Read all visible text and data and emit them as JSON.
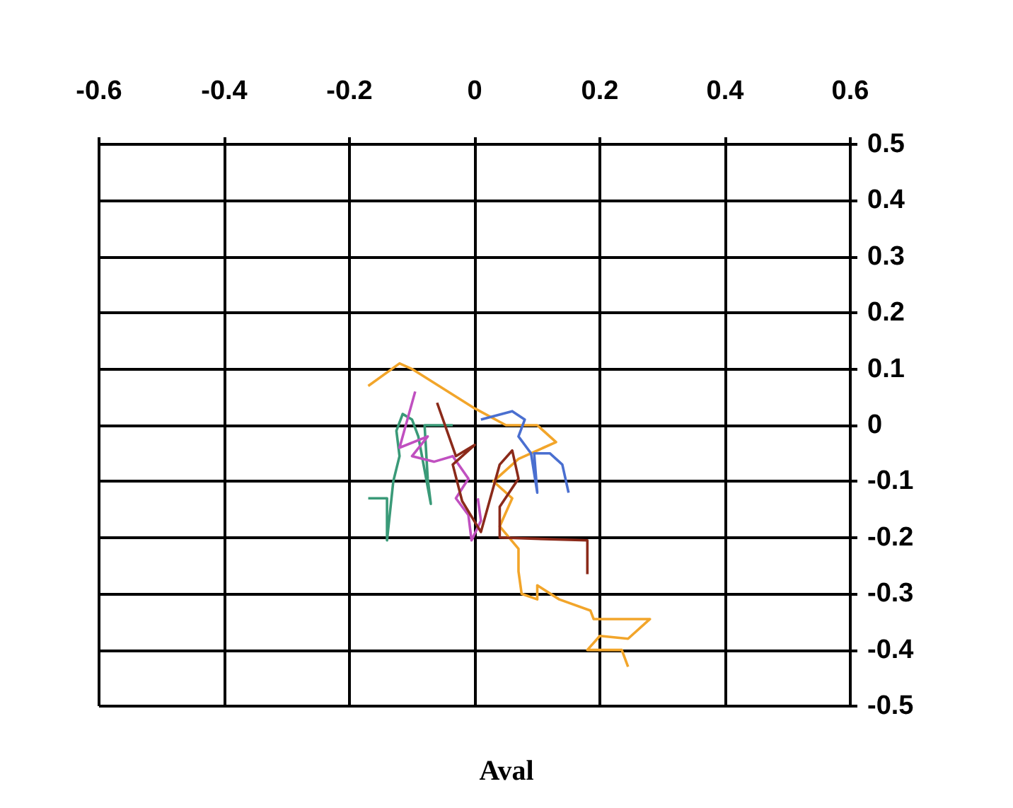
{
  "chart_data": {
    "type": "line",
    "xlabel": "Aval",
    "xlim": [
      -0.6,
      0.6
    ],
    "xticks": [
      -0.6,
      -0.4,
      -0.2,
      0,
      0.2,
      0.4,
      0.6
    ],
    "ylim": [
      -0.5,
      0.5
    ],
    "yticks": [
      -0.5,
      -0.4,
      -0.3,
      -0.2,
      -0.1,
      0,
      0.1,
      0.2,
      0.3,
      0.4,
      0.5
    ],
    "grid": true,
    "marker": "none",
    "line_style": "solid",
    "series": [
      {
        "color": "#f2a52a",
        "x": [
          -0.17,
          -0.12,
          -0.1,
          0,
          0.05,
          0.1,
          0.13,
          0.11,
          0.07,
          0.03,
          0.06,
          0.04,
          0.07,
          0.07,
          0.075,
          0.1,
          0.1,
          0.135,
          0.185,
          0.19,
          0.28,
          0.245,
          0.2,
          0.18,
          0.235,
          0.245
        ],
        "values": [
          0.07,
          0.11,
          0.1,
          0.03,
          0,
          0,
          -0.03,
          -0.04,
          -0.06,
          -0.1,
          -0.13,
          -0.18,
          -0.22,
          -0.26,
          -0.3,
          -0.31,
          -0.285,
          -0.31,
          -0.33,
          -0.345,
          -0.345,
          -0.38,
          -0.375,
          -0.4,
          -0.4,
          -0.43
        ]
      },
      {
        "color": "#4a6fd0",
        "x": [
          0.01,
          0.06,
          0.08,
          0.07,
          0.09,
          0.1,
          0.095,
          0.12,
          0.14,
          0.15
        ],
        "values": [
          0.01,
          0.025,
          0.01,
          -0.02,
          -0.05,
          -0.12,
          -0.05,
          -0.05,
          -0.07,
          -0.12
        ]
      },
      {
        "color": "#3a9a78",
        "x": [
          -0.17,
          -0.14,
          -0.14,
          -0.13,
          -0.12,
          -0.125,
          -0.115,
          -0.1,
          -0.09,
          -0.07,
          -0.075,
          -0.08,
          -0.035
        ],
        "values": [
          -0.13,
          -0.13,
          -0.205,
          -0.1,
          -0.055,
          -0.01,
          0.02,
          0.01,
          -0.02,
          -0.14,
          -0.095,
          0,
          0
        ]
      },
      {
        "color": "#c050c0",
        "x": [
          -0.095,
          -0.105,
          -0.12,
          -0.075,
          -0.1,
          -0.065,
          -0.035,
          -0.01,
          -0.03,
          -0.01,
          -0.005,
          0.01,
          0.005
        ],
        "values": [
          0.06,
          0.02,
          -0.04,
          -0.02,
          -0.055,
          -0.065,
          -0.055,
          -0.095,
          -0.13,
          -0.16,
          -0.205,
          -0.17,
          -0.13
        ]
      },
      {
        "color": "#8b2a1a",
        "x": [
          -0.06,
          -0.03,
          0,
          -0.035,
          -0.02,
          0.01,
          0.04,
          0.06,
          0.07,
          0.04,
          0.04,
          0.18,
          0.18
        ],
        "values": [
          0.04,
          -0.055,
          -0.035,
          -0.07,
          -0.135,
          -0.19,
          -0.07,
          -0.045,
          -0.095,
          -0.145,
          -0.2,
          -0.205,
          -0.265
        ]
      }
    ]
  }
}
